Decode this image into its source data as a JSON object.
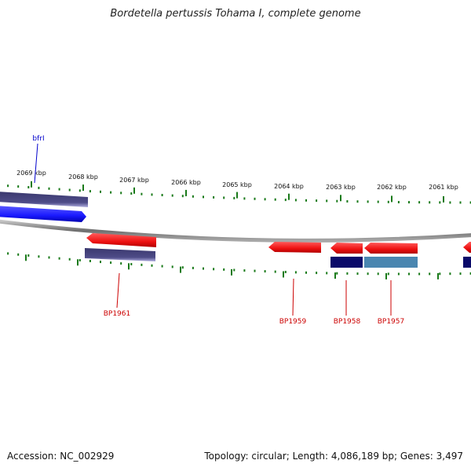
{
  "header": {
    "title": "Bordetella pertussis Tohama I, complete genome"
  },
  "footer": {
    "accession": "Accession: NC_002929",
    "summary": "Topology: circular; Length: 4,086,189 bp; Genes: 3,497"
  },
  "colors": {
    "backbone": "#808080",
    "minor_tick": "#1a7a1a",
    "forward_gene": "#1a1aff",
    "reverse_gene": "#ee1111",
    "cds_dark": "#47457f",
    "cds_navy": "#0a0a6a",
    "cds_steel": "#4a86b0",
    "label_blue": "#0000cc",
    "label_red": "#cc0000"
  },
  "scale_ticks": [
    "2069 kbp",
    "2068 kbp",
    "2067 kbp",
    "2066 kbp",
    "2065 kbp",
    "2064 kbp",
    "2063 kbp",
    "2062 kbp",
    "2061 kbp"
  ],
  "genes": [
    {
      "name": "bfrI",
      "color": "blue"
    },
    {
      "name": "BP1961",
      "color": "red"
    },
    {
      "name": "BP1959",
      "color": "red"
    },
    {
      "name": "BP1958",
      "color": "red"
    },
    {
      "name": "BP1957",
      "color": "red"
    }
  ]
}
